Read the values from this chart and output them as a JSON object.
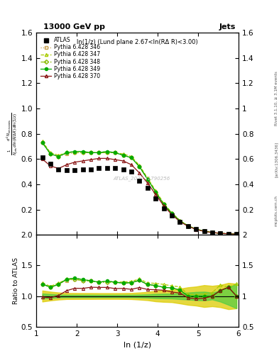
{
  "title_left": "13000 GeV pp",
  "title_right": "Jets",
  "panel_title": "ln(1/z) (Lund plane 2.67<ln(RΔ R)<3.00)",
  "watermark": "ATLAS_2020_I1790256",
  "right_label_top": "Rivet 3.1.10, ≥ 3.1M events",
  "right_label_mid": "[arXiv:1306.3436]",
  "right_label_bot": "mcplots.cern.ch",
  "xlabel": "ln (1/z)",
  "ylabel_ratio": "Ratio to ATLAS",
  "xlim": [
    1.0,
    6.0
  ],
  "ylim_main": [
    0.0,
    1.6
  ],
  "ylim_ratio": [
    0.5,
    2.0
  ],
  "yticks_main": [
    0.2,
    0.4,
    0.6,
    0.8,
    1.0,
    1.2,
    1.4,
    1.6
  ],
  "yticks_ratio": [
    0.5,
    1.0,
    1.5,
    2.0
  ],
  "x_data": [
    1.15,
    1.35,
    1.55,
    1.75,
    1.95,
    2.15,
    2.35,
    2.55,
    2.75,
    2.95,
    3.15,
    3.35,
    3.55,
    3.75,
    3.95,
    4.15,
    4.35,
    4.55,
    4.75,
    4.95,
    5.15,
    5.35,
    5.55,
    5.75,
    5.95
  ],
  "atlas_y": [
    0.61,
    0.56,
    0.52,
    0.51,
    0.51,
    0.52,
    0.52,
    0.53,
    0.53,
    0.53,
    0.52,
    0.5,
    0.43,
    0.37,
    0.29,
    0.21,
    0.15,
    0.1,
    0.07,
    0.045,
    0.028,
    0.018,
    0.011,
    0.007,
    0.005
  ],
  "atlas_err_green": [
    0.025,
    0.018,
    0.012,
    0.01,
    0.01,
    0.01,
    0.01,
    0.01,
    0.01,
    0.01,
    0.01,
    0.01,
    0.01,
    0.01,
    0.01,
    0.008,
    0.006,
    0.005,
    0.004,
    0.003,
    0.002,
    0.001,
    0.001,
    0.001,
    0.001
  ],
  "atlas_err_yellow": [
    0.055,
    0.04,
    0.03,
    0.025,
    0.025,
    0.025,
    0.025,
    0.025,
    0.025,
    0.025,
    0.025,
    0.025,
    0.025,
    0.025,
    0.025,
    0.02,
    0.015,
    0.012,
    0.01,
    0.007,
    0.005,
    0.003,
    0.002,
    0.0015,
    0.001
  ],
  "p346_y": [
    0.73,
    0.64,
    0.62,
    0.64,
    0.65,
    0.65,
    0.65,
    0.65,
    0.65,
    0.65,
    0.63,
    0.61,
    0.54,
    0.44,
    0.34,
    0.24,
    0.17,
    0.11,
    0.07,
    0.045,
    0.028,
    0.018,
    0.012,
    0.008,
    0.005
  ],
  "p347_y": [
    0.74,
    0.65,
    0.63,
    0.65,
    0.66,
    0.66,
    0.65,
    0.65,
    0.66,
    0.65,
    0.64,
    0.62,
    0.55,
    0.45,
    0.35,
    0.25,
    0.175,
    0.115,
    0.072,
    0.046,
    0.029,
    0.019,
    0.013,
    0.008,
    0.006
  ],
  "p348_y": [
    0.73,
    0.64,
    0.62,
    0.65,
    0.65,
    0.65,
    0.65,
    0.65,
    0.65,
    0.65,
    0.63,
    0.61,
    0.54,
    0.44,
    0.34,
    0.24,
    0.17,
    0.11,
    0.07,
    0.045,
    0.028,
    0.018,
    0.012,
    0.008,
    0.005
  ],
  "p349_y": [
    0.73,
    0.64,
    0.62,
    0.65,
    0.66,
    0.66,
    0.65,
    0.65,
    0.66,
    0.65,
    0.63,
    0.61,
    0.54,
    0.44,
    0.34,
    0.24,
    0.17,
    0.11,
    0.07,
    0.045,
    0.028,
    0.018,
    0.012,
    0.008,
    0.005
  ],
  "p370_y": [
    0.6,
    0.545,
    0.525,
    0.555,
    0.575,
    0.585,
    0.595,
    0.605,
    0.605,
    0.595,
    0.585,
    0.555,
    0.49,
    0.41,
    0.32,
    0.23,
    0.16,
    0.105,
    0.068,
    0.043,
    0.027,
    0.018,
    0.012,
    0.008,
    0.005
  ],
  "color_346": "#c8a050",
  "color_347": "#aacc00",
  "color_348": "#88bb00",
  "color_349": "#00aa00",
  "color_370": "#881111",
  "green_band_color": "#44cc44",
  "yellow_band_color": "#ddcc00"
}
